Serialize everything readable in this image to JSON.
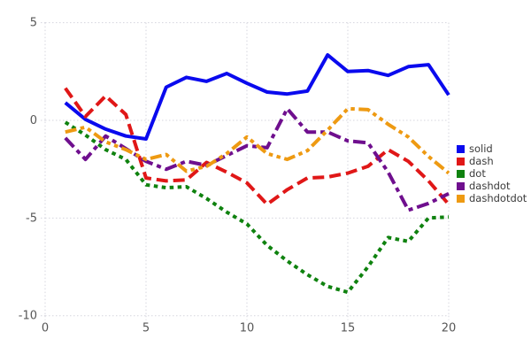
{
  "chart_data": {
    "type": "line",
    "title": "",
    "xlabel": "",
    "ylabel": "",
    "xlim": [
      0,
      20
    ],
    "ylim": [
      -10,
      5
    ],
    "xticks": [
      0,
      5,
      10,
      15,
      20
    ],
    "yticks": [
      5,
      0,
      -5,
      -10
    ],
    "grid": true,
    "legend_position": "right",
    "x": [
      1,
      2,
      3,
      4,
      5,
      6,
      7,
      8,
      9,
      10,
      11,
      12,
      13,
      14,
      15,
      16,
      17,
      18,
      19,
      20
    ],
    "series": [
      {
        "name": "solid",
        "color": "#0a0aee",
        "dash_style": "solid",
        "values": [
          0.9,
          0.05,
          -0.45,
          -0.8,
          -0.95,
          1.7,
          2.2,
          2.0,
          2.4,
          1.9,
          1.45,
          1.35,
          1.5,
          3.35,
          2.5,
          2.55,
          2.3,
          2.75,
          2.85,
          1.3
        ]
      },
      {
        "name": "dash",
        "color": "#e01717",
        "dash_style": "dash",
        "values": [
          1.65,
          0.2,
          1.25,
          0.3,
          -2.95,
          -3.1,
          -3.05,
          -2.15,
          -2.65,
          -3.2,
          -4.3,
          -3.55,
          -2.95,
          -2.9,
          -2.7,
          -2.35,
          -1.5,
          -2.1,
          -3.1,
          -4.3
        ]
      },
      {
        "name": "dot",
        "color": "#0f820f",
        "dash_style": "dot",
        "values": [
          -0.1,
          -0.75,
          -1.5,
          -2.0,
          -3.3,
          -3.45,
          -3.4,
          -4.0,
          -4.7,
          -5.3,
          -6.4,
          -7.2,
          -7.9,
          -8.5,
          -8.8,
          -7.5,
          -6.0,
          -6.2,
          -5.0,
          -4.95
        ]
      },
      {
        "name": "dashdot",
        "color": "#6f0f8e",
        "dash_style": "dashdot",
        "values": [
          -0.9,
          -2.0,
          -0.8,
          -1.45,
          -2.1,
          -2.5,
          -2.1,
          -2.3,
          -1.8,
          -1.3,
          -1.4,
          0.6,
          -0.6,
          -0.6,
          -1.05,
          -1.15,
          -2.65,
          -4.6,
          -4.25,
          -3.75
        ]
      },
      {
        "name": "dashdotdot",
        "color": "#ee9a12",
        "dash_style": "dashdotdot",
        "values": [
          -0.6,
          -0.35,
          -1.1,
          -1.5,
          -2.0,
          -1.75,
          -2.6,
          -2.35,
          -1.7,
          -0.85,
          -1.7,
          -2.0,
          -1.55,
          -0.5,
          0.6,
          0.55,
          -0.2,
          -0.85,
          -1.85,
          -2.7
        ]
      }
    ]
  },
  "style": {
    "grid_color": "#d5d5de",
    "tick_label_color": "#575757",
    "legend_text_color": "#3a3a3a",
    "background": "#ffffff",
    "line_width": 4
  }
}
